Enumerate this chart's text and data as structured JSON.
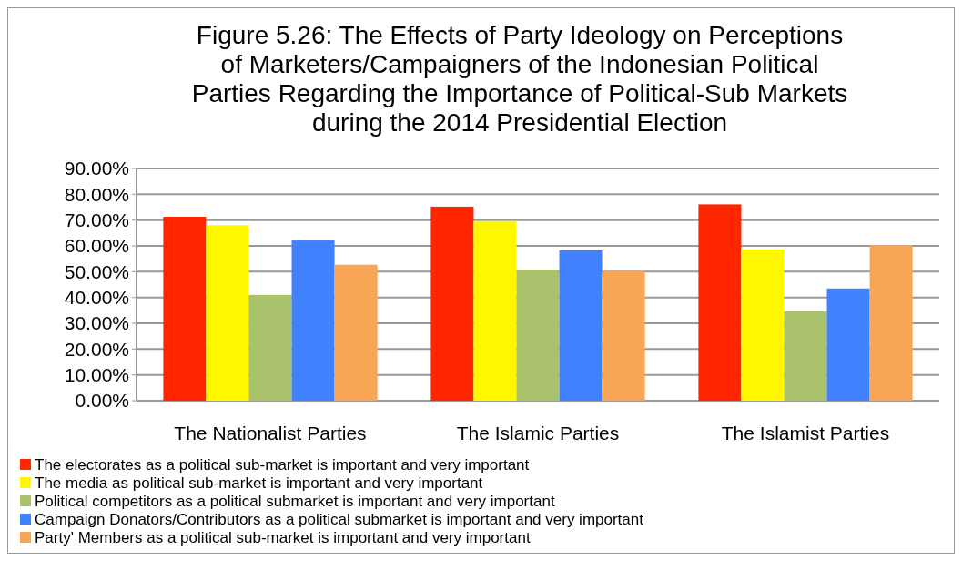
{
  "chart_data": {
    "type": "bar",
    "title": "Figure 5.26: The Effects of Party Ideology on Perceptions of Marketers/Campaigners of the Indonesian Political Parties Regarding the Importance of Political-Sub Markets during the 2014 Presidential Election",
    "categories": [
      "The Nationalist Parties",
      "The Islamic Parties",
      "The Islamist Parties"
    ],
    "series": [
      {
        "name": "The electorates as a political sub-market is important and very important",
        "color": "#ff2600",
        "values": [
          71.3,
          75.2,
          76.1
        ]
      },
      {
        "name": "The media as political sub-market is important and very important",
        "color": "#fff700",
        "values": [
          68.0,
          69.6,
          58.6
        ]
      },
      {
        "name": "Political competitors as a political submarket is important and very important",
        "color": "#aac26c",
        "values": [
          41.0,
          50.8,
          34.7
        ]
      },
      {
        "name": "Campaign Donators/Contributors as a political submarket is important and very important",
        "color": "#4181fe",
        "values": [
          62.1,
          58.3,
          43.5
        ]
      },
      {
        "name": "Party' Members as a political sub-market is important and very important",
        "color": "#f8a656",
        "values": [
          52.7,
          50.5,
          60.3
        ]
      }
    ],
    "ylim": [
      0,
      90
    ],
    "yticks": [
      {
        "value": 0,
        "label": "0.00%"
      },
      {
        "value": 10,
        "label": "10.00%"
      },
      {
        "value": 20,
        "label": "20.00%"
      },
      {
        "value": 30,
        "label": "30.00%"
      },
      {
        "value": 40,
        "label": "40.00%"
      },
      {
        "value": 50,
        "label": "50.00%"
      },
      {
        "value": 60,
        "label": "60.00%"
      },
      {
        "value": 70,
        "label": "70.00%"
      },
      {
        "value": 80,
        "label": "80.00%"
      },
      {
        "value": 90,
        "label": "90.00%"
      }
    ],
    "grid": "y",
    "legend": "bottom"
  }
}
